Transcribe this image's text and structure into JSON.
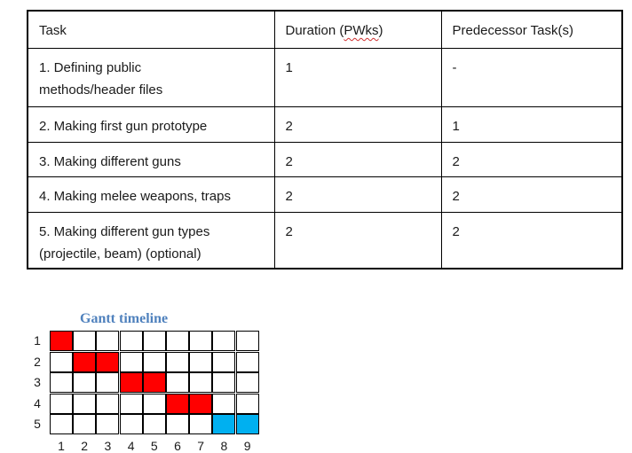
{
  "table": {
    "headers": [
      "Task",
      "Duration (PWks)",
      "Predecessor Task(s)"
    ],
    "rows": [
      [
        "1.  Defining public\nmethods/header files",
        "1",
        "-"
      ],
      [
        "2.  Making first gun prototype",
        "2",
        "1"
      ],
      [
        "3.  Making different guns",
        "2",
        "2"
      ],
      [
        "4.  Making melee weapons, traps",
        "2",
        "2"
      ],
      [
        "5.  Making different gun types\n(projectile, beam) (optional)",
        "2",
        "2"
      ]
    ]
  },
  "gantt": {
    "title": "Gantt timeline",
    "row_labels": [
      "1",
      "2",
      "3",
      "4",
      "5"
    ],
    "col_labels": [
      "1",
      "2",
      "3",
      "4",
      "5",
      "6",
      "7",
      "8",
      "9"
    ],
    "colors": {
      "required": "#ff0000",
      "optional": "#00b0f0"
    },
    "bars": [
      {
        "task": 1,
        "start_week": 1,
        "end_week": 1,
        "type": "required"
      },
      {
        "task": 2,
        "start_week": 2,
        "end_week": 3,
        "type": "required"
      },
      {
        "task": 3,
        "start_week": 4,
        "end_week": 5,
        "type": "required"
      },
      {
        "task": 4,
        "start_week": 6,
        "end_week": 7,
        "type": "required"
      },
      {
        "task": 5,
        "start_week": 8,
        "end_week": 9,
        "type": "optional"
      }
    ]
  }
}
